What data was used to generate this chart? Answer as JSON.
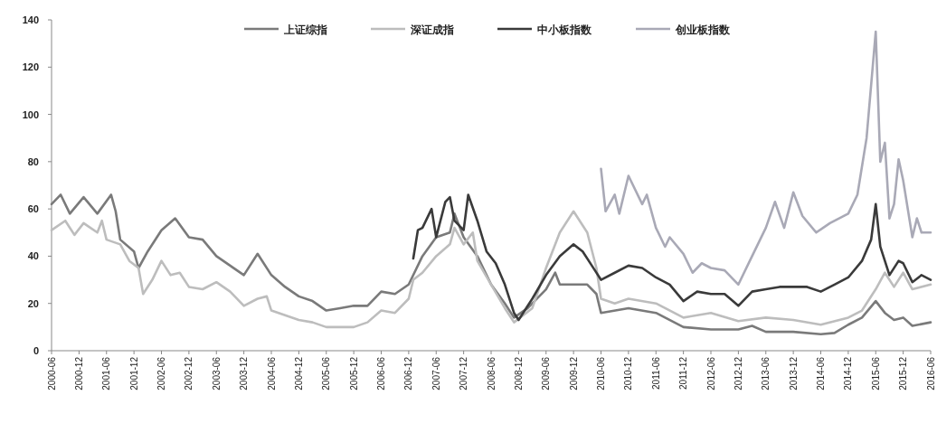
{
  "chart_data": {
    "type": "line",
    "xlim": [
      "2000-06",
      "2016-06"
    ],
    "xticks": [
      "2000-06",
      "2000-12",
      "2001-06",
      "2001-12",
      "2002-06",
      "2002-12",
      "2003-06",
      "2003-12",
      "2004-06",
      "2004-12",
      "2005-06",
      "2005-12",
      "2006-06",
      "2006-12",
      "2007-06",
      "2007-12",
      "2008-06",
      "2008-12",
      "2009-06",
      "2009-12",
      "2010-06",
      "2010-12",
      "2011-06",
      "2011-12",
      "2012-06",
      "2012-12",
      "2013-06",
      "2013-12",
      "2014-06",
      "2014-12",
      "2015-06",
      "2015-12",
      "2016-06"
    ],
    "ylim": [
      0,
      140
    ],
    "yticks": [
      0,
      20,
      40,
      60,
      80,
      100,
      120,
      140
    ],
    "grid": false,
    "legend": "top",
    "line_style": "solid",
    "series": [
      {
        "name": "上证综指",
        "color": "#7a7a7a",
        "x": [
          "2000-06",
          "2000-08",
          "2000-10",
          "2001-01",
          "2001-04",
          "2001-07",
          "2001-08",
          "2001-09",
          "2001-12",
          "2002-01",
          "2002-03",
          "2002-06",
          "2002-09",
          "2002-12",
          "2003-03",
          "2003-06",
          "2003-09",
          "2003-12",
          "2004-03",
          "2004-06",
          "2004-09",
          "2004-12",
          "2005-03",
          "2005-06",
          "2005-09",
          "2005-12",
          "2006-03",
          "2006-06",
          "2006-09",
          "2006-12",
          "2007-03",
          "2007-06",
          "2007-09",
          "2007-10",
          "2007-12",
          "2008-03",
          "2008-06",
          "2008-09",
          "2008-11",
          "2009-02",
          "2009-06",
          "2009-08",
          "2009-09",
          "2009-12",
          "2010-03",
          "2010-05",
          "2010-06",
          "2010-12",
          "2011-06",
          "2011-12",
          "2012-06",
          "2012-12",
          "2013-03",
          "2013-06",
          "2013-12",
          "2014-06",
          "2014-09",
          "2014-12",
          "2015-03",
          "2015-06",
          "2015-08",
          "2015-10",
          "2015-12",
          "2016-02",
          "2016-06"
        ],
        "values": [
          62,
          66,
          58,
          65,
          58,
          66,
          59,
          47,
          42,
          35,
          42,
          51,
          56,
          48,
          47,
          40,
          36,
          32,
          41,
          32,
          27,
          23,
          21,
          17,
          18,
          19,
          19,
          25,
          24,
          28,
          40,
          48,
          50,
          58,
          48,
          40,
          28,
          20,
          14,
          18,
          26,
          33,
          28,
          28,
          28,
          24,
          16,
          18,
          16,
          10,
          9,
          9,
          10.5,
          8,
          8,
          7,
          7.5,
          11,
          14,
          21,
          16,
          13,
          14,
          10.5,
          12
        ]
      },
      {
        "name": "深证成指",
        "color": "#bdbdbd",
        "x": [
          "2000-06",
          "2000-09",
          "2000-11",
          "2001-01",
          "2001-04",
          "2001-05",
          "2001-06",
          "2001-09",
          "2001-11",
          "2002-01",
          "2002-02",
          "2002-04",
          "2002-06",
          "2002-08",
          "2002-10",
          "2002-12",
          "2003-03",
          "2003-06",
          "2003-09",
          "2003-12",
          "2004-03",
          "2004-05",
          "2004-06",
          "2004-09",
          "2004-12",
          "2005-03",
          "2005-06",
          "2005-09",
          "2005-12",
          "2006-03",
          "2006-06",
          "2006-09",
          "2006-12",
          "2007-01",
          "2007-03",
          "2007-06",
          "2007-09",
          "2007-10",
          "2007-12",
          "2008-02",
          "2008-03",
          "2008-06",
          "2008-09",
          "2008-11",
          "2009-03",
          "2009-06",
          "2009-09",
          "2009-12",
          "2010-03",
          "2010-05",
          "2010-06",
          "2010-09",
          "2010-12",
          "2011-06",
          "2011-12",
          "2012-06",
          "2012-12",
          "2013-06",
          "2013-12",
          "2014-06",
          "2014-12",
          "2015-03",
          "2015-06",
          "2015-08",
          "2015-10",
          "2015-12",
          "2016-02",
          "2016-06"
        ],
        "values": [
          51,
          55,
          49,
          54,
          50,
          55,
          47,
          45,
          38,
          35,
          24,
          30,
          38,
          32,
          33,
          27,
          26,
          29,
          25,
          19,
          22,
          23,
          17,
          15,
          13,
          12,
          10,
          10,
          10,
          12,
          17,
          16,
          22,
          30,
          33,
          40,
          45,
          52,
          45,
          50,
          38,
          28,
          18,
          12,
          18,
          35,
          50,
          59,
          50,
          35,
          22,
          20,
          22,
          20,
          14,
          16,
          12.5,
          14,
          13,
          11,
          14,
          17,
          26,
          33,
          27,
          33,
          26,
          28
        ]
      },
      {
        "name": "中小板指数",
        "color": "#3a3a3a",
        "x": [
          "2007-01",
          "2007-02",
          "2007-03",
          "2007-05",
          "2007-06",
          "2007-08",
          "2007-09",
          "2007-10",
          "2007-12",
          "2008-01",
          "2008-03",
          "2008-05",
          "2008-07",
          "2008-09",
          "2008-11",
          "2008-12",
          "2009-03",
          "2009-06",
          "2009-09",
          "2009-12",
          "2010-02",
          "2010-04",
          "2010-06",
          "2010-09",
          "2010-12",
          "2011-03",
          "2011-06",
          "2011-09",
          "2011-12",
          "2012-03",
          "2012-06",
          "2012-09",
          "2012-12",
          "2013-03",
          "2013-06",
          "2013-09",
          "2013-12",
          "2014-03",
          "2014-06",
          "2014-09",
          "2014-12",
          "2015-03",
          "2015-05",
          "2015-06",
          "2015-07",
          "2015-09",
          "2015-11",
          "2015-12",
          "2016-02",
          "2016-04",
          "2016-06"
        ],
        "values": [
          39,
          51,
          52,
          60,
          48,
          63,
          65,
          55,
          51,
          66,
          55,
          42,
          37,
          28,
          16,
          13,
          22,
          32,
          40,
          45,
          42,
          36,
          30,
          33,
          36,
          35,
          31,
          28,
          21,
          25,
          24,
          24,
          19,
          25,
          26,
          27,
          27,
          27,
          25,
          28,
          31,
          38,
          47,
          62,
          44,
          32,
          38,
          37,
          29,
          32,
          30
        ]
      },
      {
        "name": "创业板指数",
        "color": "#a9a9b6",
        "x": [
          "2010-06",
          "2010-07",
          "2010-09",
          "2010-10",
          "2010-12",
          "2011-03",
          "2011-04",
          "2011-06",
          "2011-08",
          "2011-09",
          "2011-12",
          "2012-02",
          "2012-04",
          "2012-06",
          "2012-09",
          "2012-12",
          "2013-03",
          "2013-06",
          "2013-08",
          "2013-10",
          "2013-12",
          "2014-02",
          "2014-05",
          "2014-08",
          "2014-10",
          "2014-12",
          "2015-02",
          "2015-04",
          "2015-06",
          "2015-07",
          "2015-08",
          "2015-09",
          "2015-10",
          "2015-11",
          "2015-12",
          "2016-02",
          "2016-03",
          "2016-04",
          "2016-06"
        ],
        "values": [
          77,
          59,
          66,
          58,
          74,
          62,
          66,
          52,
          44,
          48,
          41,
          33,
          37,
          35,
          34,
          28,
          40,
          52,
          63,
          52,
          67,
          57,
          50,
          54,
          56,
          58,
          66,
          90,
          135,
          80,
          88,
          56,
          62,
          81,
          72,
          48,
          56,
          50,
          50
        ]
      }
    ]
  }
}
